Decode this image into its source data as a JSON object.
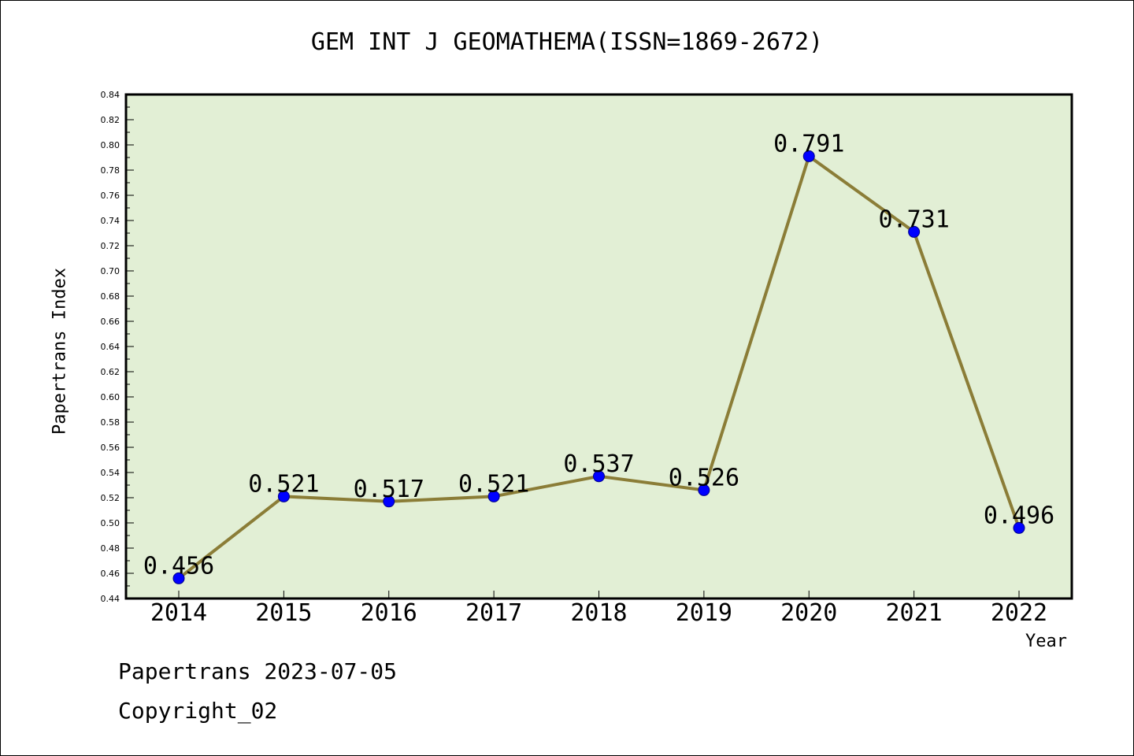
{
  "page": {
    "title": "GEM INT J GEOMATHEMA(ISSN=1869-2672)",
    "footer_date": "Papertrans 2023-07-05",
    "footer_copyright": "Copyright_02"
  },
  "chart_data": {
    "type": "line",
    "title": "GEM INT J GEOMATHEMA(ISSN=1869-2672)",
    "xlabel": "Year",
    "ylabel": "Papertrans Index",
    "x": [
      "2014",
      "2015",
      "2016",
      "2017",
      "2018",
      "2019",
      "2020",
      "2021",
      "2022"
    ],
    "series": [
      {
        "values": [
          0.456,
          0.521,
          0.517,
          0.521,
          0.537,
          0.526,
          0.791,
          0.731,
          0.496
        ],
        "labels": [
          "0.456",
          "0.521",
          "0.517",
          "0.521",
          "0.537",
          "0.526",
          "0.791",
          "0.731",
          "0.496"
        ]
      }
    ],
    "ylim": [
      0.44,
      0.84
    ],
    "yticks": [
      "0.44",
      "0.46",
      "0.48",
      "0.50",
      "0.52",
      "0.54",
      "0.56",
      "0.58",
      "0.60",
      "0.62",
      "0.64",
      "0.66",
      "0.68",
      "0.70",
      "0.72",
      "0.74",
      "0.76",
      "0.78",
      "0.80",
      "0.82",
      "0.84"
    ],
    "grid": false,
    "colors": {
      "plot_background": "#e2efd5",
      "line": "#8b7d37",
      "marker": "#0000ff",
      "axis": "#000000"
    }
  }
}
